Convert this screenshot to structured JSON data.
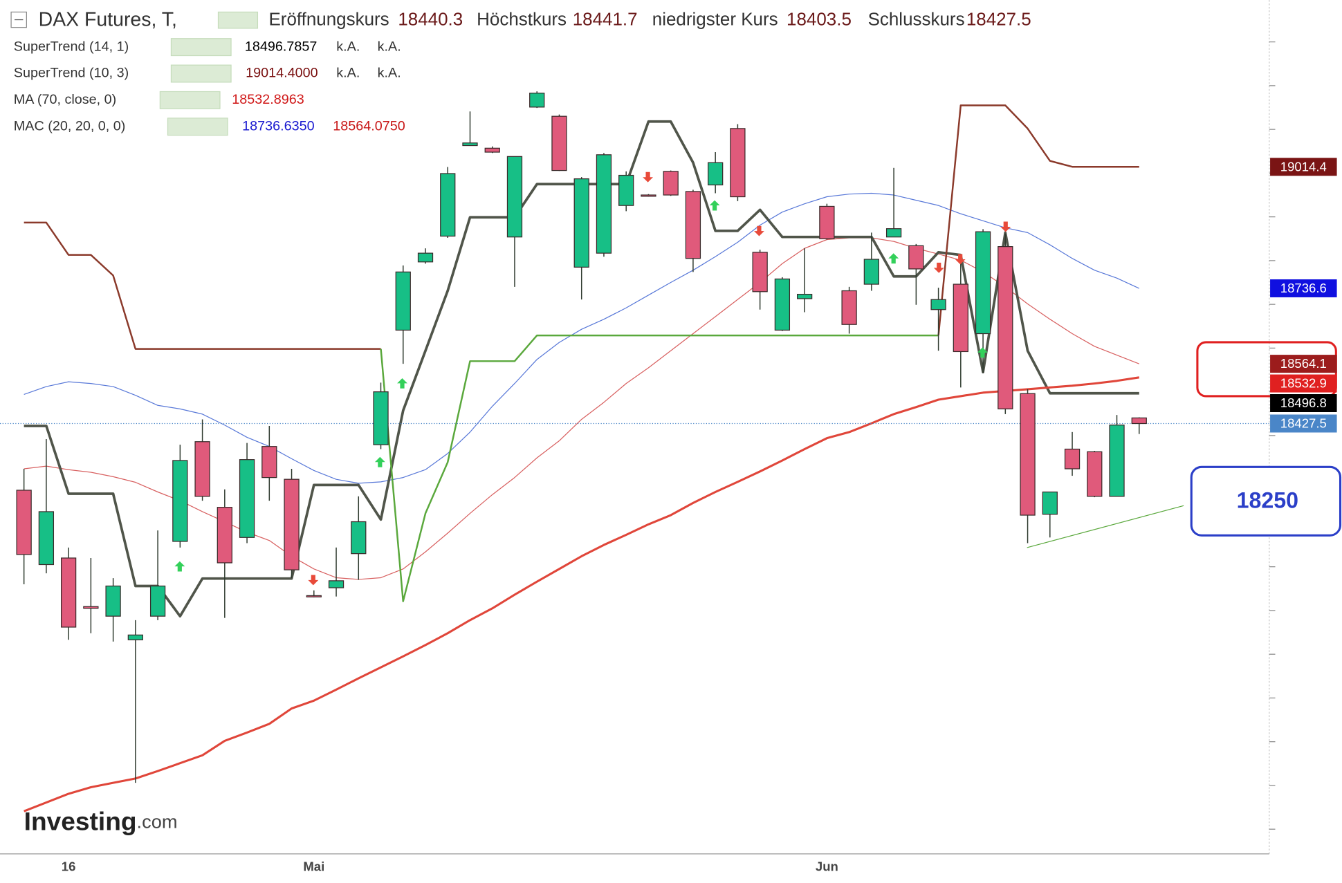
{
  "chart_data": {
    "type": "candlestick",
    "title": "DAX Futures, T,",
    "ohlc_labels": [
      "Eröffnungskurs",
      "Höchstkurs",
      "niedrigster Kurs",
      "Schlusskurs"
    ],
    "categories": [
      null,
      null,
      "16",
      null,
      null,
      null,
      null,
      null,
      null,
      null,
      null,
      null,
      null,
      "Mai",
      null,
      null,
      null,
      null,
      null,
      null,
      null,
      null,
      null,
      null,
      null,
      null,
      null,
      null,
      null,
      null,
      null,
      null,
      null,
      null,
      null,
      null,
      "Jun",
      null,
      null,
      null,
      null,
      null,
      null,
      null,
      null,
      null,
      null,
      null,
      null,
      null,
      null
    ],
    "open": [
      18275,
      18105,
      18120,
      18009,
      17987,
      17933,
      17987,
      18158,
      18386,
      18236,
      18167,
      18375,
      18300,
      18034,
      18052,
      18130,
      18379,
      18641,
      18797,
      18856,
      19063,
      19057,
      18854,
      19151,
      19130,
      18785,
      18817,
      18926,
      18950,
      19004,
      18958,
      18973,
      19102,
      18819,
      18641,
      18713,
      18924,
      18731,
      18746,
      18854,
      18834,
      18688,
      18746,
      18633,
      18832,
      18496,
      18220,
      18369,
      18363,
      18261,
      18440.3
    ],
    "high": [
      18324,
      18392,
      18144,
      18120,
      18074,
      17978,
      18183,
      18379,
      18437,
      18277,
      18383,
      18422,
      18324,
      18046,
      18144,
      18261,
      18521,
      18789,
      18828,
      19014,
      19141,
      19061,
      19038,
      19187,
      19134,
      18991,
      19046,
      19004,
      18952,
      19006,
      18962,
      19048,
      19112,
      18825,
      18762,
      18828,
      18930,
      18740,
      18864,
      19012,
      18838,
      18738,
      18813,
      18872,
      18862,
      18506,
      18271,
      18408,
      18365,
      18447,
      18441.7
    ],
    "low": [
      18060,
      18085,
      17933,
      17948,
      17929,
      17606,
      17978,
      18144,
      18251,
      17983,
      18154,
      18251,
      18074,
      18030,
      18032,
      18070,
      18369,
      18564,
      18793,
      18852,
      19063,
      19046,
      18740,
      19149,
      19005,
      18711,
      18809,
      18913,
      18946,
      18948,
      18774,
      18954,
      18936,
      18688,
      18639,
      18682,
      18848,
      18633,
      18731,
      18854,
      18699,
      18594,
      18510,
      18543,
      18449,
      18154,
      18167,
      18308,
      18259,
      18261,
      18403.5
    ],
    "close": [
      18128,
      18226,
      17962,
      18005,
      18056,
      17944,
      18056,
      18343,
      18261,
      18109,
      18345,
      18304,
      18093,
      18032,
      18068,
      18203,
      18500,
      18774,
      18817,
      18999,
      19069,
      19048,
      19038,
      19183,
      19006,
      18987,
      19042,
      18995,
      18948,
      18950,
      18805,
      19024,
      18946,
      18729,
      18758,
      18723,
      18850,
      18654,
      18803,
      18873,
      18781,
      18711,
      18592,
      18866,
      18461,
      18218,
      18271,
      18324,
      18261,
      18424,
      18427.5
    ],
    "up_color": "#17bf86",
    "down_color": "#e05a7b",
    "last_label_color": "#4a86c8",
    "series": [
      {
        "name": "SuperTrend (14, 1)",
        "color": "#50554a",
        "width": 3,
        "values": [
          18422,
          18422,
          18267,
          18267,
          18267,
          18056,
          18056,
          17987,
          18073,
          18073,
          18073,
          18073,
          18073,
          18287,
          18287,
          18287,
          18208,
          18457,
          18594,
          18731,
          18899,
          18899,
          18899,
          18975,
          18975,
          18975,
          18975,
          18975,
          19118,
          19118,
          19024,
          18868,
          18868,
          18916,
          18854,
          18854,
          18854,
          18854,
          18854,
          18764,
          18764,
          18819,
          18813,
          18545,
          18864,
          18594,
          18496.8,
          18496.8,
          18496.8,
          18496.8,
          18496.8
        ],
        "label_color": "#000000",
        "legend_values": [
          "18496.7857",
          "k.A.",
          "k.A."
        ],
        "legend_colors": [
          "#000000",
          "#333333",
          "#333333"
        ]
      },
      {
        "name": "SuperTrend (10, 3)",
        "color": "#8b3a2b",
        "width": 2,
        "values": [
          18887,
          18887,
          18813,
          18813,
          18766,
          18598,
          18598,
          18598,
          18598,
          18598,
          18598,
          18598,
          18598,
          18598,
          18598,
          18598,
          18598,
          18021,
          18222,
          18339,
          18570,
          18570,
          18570,
          18629,
          18629,
          18629,
          18629,
          18629,
          18629,
          18629,
          18629,
          18629,
          18629,
          18629,
          18629,
          18629,
          18629,
          18629,
          18629,
          18629,
          18629,
          18629,
          19155,
          19155,
          19155,
          19102,
          19028,
          19014.4,
          19014.4,
          19014.4,
          19014.4
        ],
        "point_colors": [
          "#8b3a2b",
          "#8b3a2b",
          "#8b3a2b",
          "#8b3a2b",
          "#8b3a2b",
          "#8b3a2b",
          "#8b3a2b",
          "#8b3a2b",
          "#8b3a2b",
          "#8b3a2b",
          "#8b3a2b",
          "#8b3a2b",
          "#8b3a2b",
          "#8b3a2b",
          "#8b3a2b",
          "#8b3a2b",
          "#8b3a2b",
          "#5aa83c",
          "#5aa83c",
          "#5aa83c",
          "#5aa83c",
          "#5aa83c",
          "#5aa83c",
          "#5aa83c",
          "#5aa83c",
          "#5aa83c",
          "#5aa83c",
          "#5aa83c",
          "#5aa83c",
          "#5aa83c",
          "#5aa83c",
          "#5aa83c",
          "#5aa83c",
          "#5aa83c",
          "#5aa83c",
          "#5aa83c",
          "#5aa83c",
          "#5aa83c",
          "#5aa83c",
          "#5aa83c",
          "#5aa83c",
          "#5aa83c",
          "#8b3a2b",
          "#8b3a2b",
          "#8b3a2b",
          "#8b3a2b",
          "#8b3a2b",
          "#8b3a2b",
          "#8b3a2b",
          "#8b3a2b",
          "#8b3a2b"
        ],
        "label_color": "#7a1414",
        "legend_values": [
          "19014.4000",
          "k.A.",
          "k.A."
        ],
        "legend_colors": [
          "#7a1010",
          "#333333",
          "#333333"
        ]
      },
      {
        "name": "MA (70, close, 0)",
        "color": "#e0463a",
        "width": 2.5,
        "values": [
          17541,
          17561,
          17581,
          17596,
          17606,
          17616,
          17633,
          17651,
          17669,
          17702,
          17721,
          17741,
          17776,
          17794,
          17819,
          17845,
          17870,
          17895,
          17921,
          17948,
          17978,
          18005,
          18036,
          18066,
          18095,
          18124,
          18150,
          18173,
          18197,
          18218,
          18246,
          18271,
          18294,
          18318,
          18343,
          18369,
          18394,
          18408,
          18428,
          18449,
          18465,
          18482,
          18490,
          18498,
          18502,
          18506,
          18510,
          18514,
          18519,
          18525,
          18532.9
        ],
        "label_color": "#e02020",
        "legend_values": [
          "18532.8963"
        ],
        "legend_colors": [
          "#d01818"
        ]
      },
      {
        "name": "MAC (20, 20, 0, 0)",
        "bands": [
          {
            "color": "#5878d8",
            "width": 1,
            "label_color": "#1010e0",
            "values": [
              18494,
              18512,
              18523,
              18519,
              18512,
              18492,
              18469,
              18461,
              18449,
              18424,
              18396,
              18375,
              18347,
              18320,
              18300,
              18291,
              18294,
              18304,
              18322,
              18359,
              18408,
              18467,
              18519,
              18574,
              18613,
              18643,
              18666,
              18692,
              18721,
              18750,
              18778,
              18809,
              18842,
              18881,
              18911,
              18930,
              18946,
              18952,
              18954,
              18950,
              18938,
              18926,
              18907,
              18891,
              18875,
              18864,
              18836,
              18805,
              18778,
              18760,
              18736.6
            ]
          },
          {
            "color": "#d86060",
            "width": 1,
            "label_color": "#9c1c1c",
            "values": [
              18324,
              18330,
              18322,
              18316,
              18306,
              18293,
              18271,
              18251,
              18226,
              18203,
              18179,
              18160,
              18124,
              18095,
              18075,
              18071,
              18075,
              18095,
              18134,
              18177,
              18222,
              18265,
              18304,
              18349,
              18388,
              18437,
              18476,
              18519,
              18555,
              18594,
              18633,
              18672,
              18711,
              18750,
              18793,
              18828,
              18848,
              18852,
              18852,
              18844,
              18828,
              18815,
              18801,
              18774,
              18740,
              18701,
              18666,
              18633,
              18604,
              18584,
              18564.1
            ]
          }
        ],
        "legend_values": [
          "18736.6350",
          "18564.0750"
        ],
        "legend_colors": [
          "#1a1ad0",
          "#c81818"
        ]
      }
    ],
    "ylim": [
      17443.6,
      19395.7
    ],
    "yticks": [
      17500,
      17600,
      17700,
      17800,
      17900,
      18000,
      18100,
      18200,
      18300,
      18400,
      18500,
      18600,
      18700,
      18800,
      18900,
      19000,
      19100,
      19200,
      19300
    ],
    "annotation": 18250,
    "watermark": "Investing",
    "watermark_suffix": ".com"
  }
}
